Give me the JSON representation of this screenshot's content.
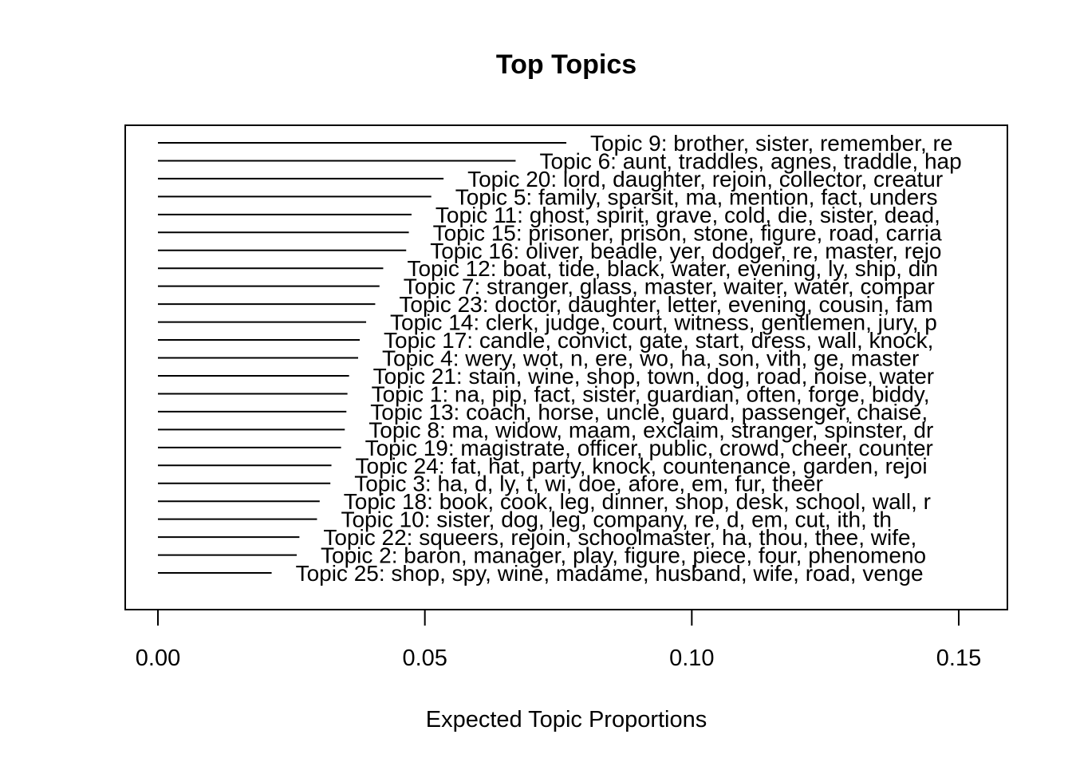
{
  "chart_data": {
    "type": "bar",
    "orientation": "horizontal",
    "title": "Top Topics",
    "xlabel": "Expected Topic Proportions",
    "ylabel": "",
    "xlim": [
      0,
      0.158
    ],
    "xticks": [
      0.0,
      0.05,
      0.1,
      0.15
    ],
    "xtick_labels": [
      "0.00",
      "0.05",
      "0.10",
      "0.15"
    ],
    "grid": false,
    "legend": "none",
    "categories": [
      "Topic 9: brother, sister, remember, re",
      "Topic 6: aunt, traddles, agnes, traddle, hap",
      "Topic 20: lord, daughter, rejoin, collector, creatur",
      "Topic 5: family, sparsit, ma, mention, fact, unders",
      "Topic 11: ghost, spirit, grave, cold, die, sister, dead,",
      "Topic 15: prisoner, prison, stone, figure, road, carria",
      "Topic 16: oliver, beadle, yer, dodger, re, master, rejo",
      "Topic 12: boat, tide, black, water, evening, ly, ship, din",
      "Topic 7: stranger, glass, master, waiter, water, compar",
      "Topic 23: doctor, daughter, letter, evening, cousin, fam",
      "Topic 14: clerk, judge, court, witness, gentlemen, jury, p",
      "Topic 17: candle, convict, gate, start, dress, wall, knock,",
      "Topic 4: wery, wot, n, ere, wo, ha, son, vith, ge, master",
      "Topic 21: stain, wine, shop, town, dog, road, noise, water",
      "Topic 1: na, pip, fact, sister, guardian, often, forge, biddy,",
      "Topic 13: coach, horse, uncle, guard, passenger, chaise,",
      "Topic 8: ma, widow, maam, exclaim, stranger, spinster, dr",
      "Topic 19: magistrate, officer, public, crowd, cheer, counter",
      "Topic 24: fat, hat, party, knock, countenance, garden, rejoi",
      "Topic 3: ha, d, ly, t, wi, doe, afore, em, fur, theer",
      "Topic 18: book, cook, leg, dinner, shop, desk, school, wall, r",
      "Topic 10: sister, dog, leg, company, re, d, em, cut, ith, th",
      "Topic 22: squeers, rejoin, schoolmaster, ha, thou, thee, wife,",
      "Topic 2: baron, manager, play, figure, piece, four, phenomeno",
      "Topic 25: shop, spy, wine, madame, husband, wife, road, venge"
    ],
    "values": [
      0.0765,
      0.067,
      0.0535,
      0.0512,
      0.0475,
      0.047,
      0.0465,
      0.0422,
      0.0415,
      0.0407,
      0.039,
      0.0378,
      0.0375,
      0.0358,
      0.0355,
      0.0353,
      0.035,
      0.0343,
      0.0325,
      0.0323,
      0.0303,
      0.0298,
      0.0265,
      0.026,
      0.0213
    ]
  }
}
